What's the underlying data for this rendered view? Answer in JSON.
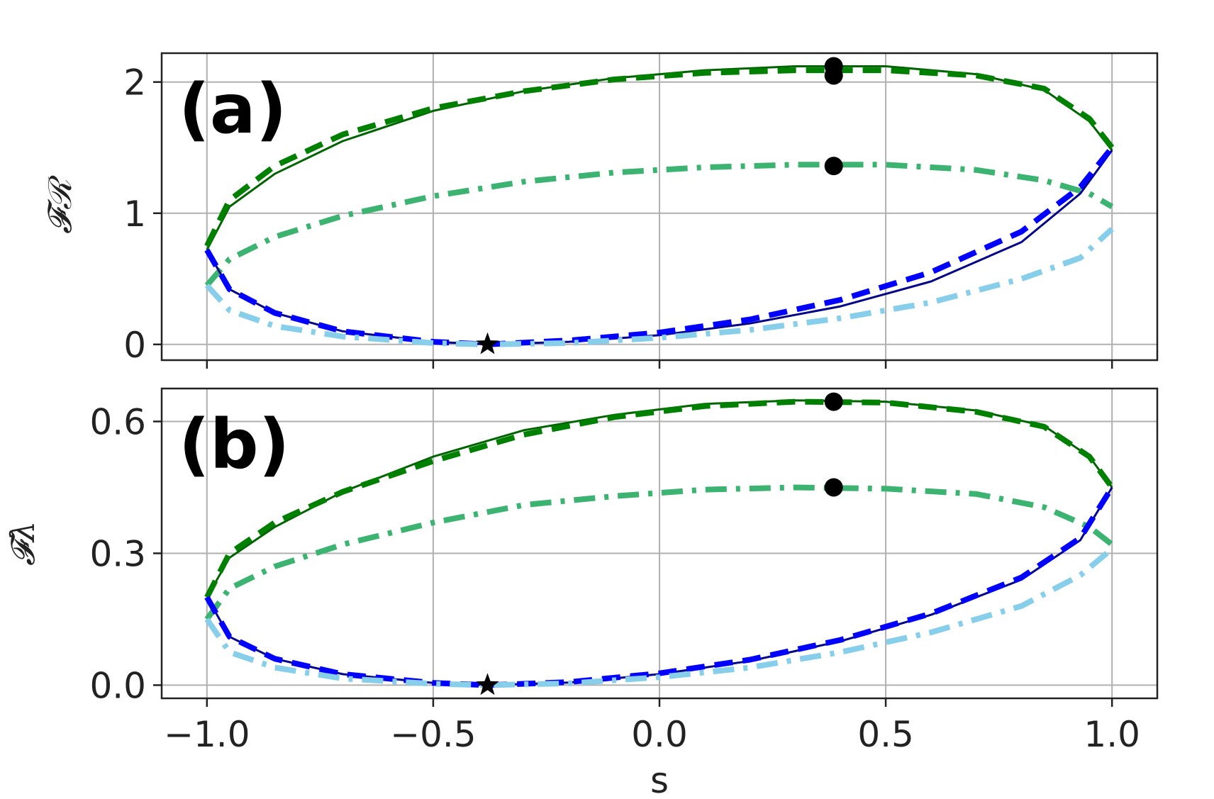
{
  "chart_data": [
    {
      "type": "line",
      "panel_label": "(a)",
      "ylabel": "𝓕ℛ",
      "xlabel": "",
      "xlim": [
        -1.1,
        1.1
      ],
      "ylim": [
        -0.12,
        2.22
      ],
      "xticks": [
        -1.0,
        -0.5,
        0.0,
        0.5,
        1.0
      ],
      "yticks": [
        0,
        1,
        2
      ],
      "ytick_labels": [
        "0",
        "1",
        "2"
      ],
      "xtick_labels": [
        "",
        "",
        "",
        "",
        ""
      ],
      "grid": true,
      "series": [
        {
          "color": "#006400",
          "style": "solid-thin",
          "points": [
            [
              -1.0,
              0.72
            ],
            [
              -0.95,
              1.05
            ],
            [
              -0.85,
              1.3
            ],
            [
              -0.7,
              1.55
            ],
            [
              -0.5,
              1.78
            ],
            [
              -0.3,
              1.93
            ],
            [
              -0.1,
              2.03
            ],
            [
              0.1,
              2.09
            ],
            [
              0.3,
              2.12
            ],
            [
              0.5,
              2.12
            ],
            [
              0.7,
              2.06
            ],
            [
              0.85,
              1.94
            ],
            [
              0.95,
              1.7
            ],
            [
              1.0,
              1.48
            ]
          ]
        },
        {
          "color": "#008000",
          "style": "dashed-thick",
          "points": [
            [
              -1.0,
              0.75
            ],
            [
              -0.95,
              1.1
            ],
            [
              -0.85,
              1.36
            ],
            [
              -0.7,
              1.6
            ],
            [
              -0.5,
              1.8
            ],
            [
              -0.3,
              1.93
            ],
            [
              -0.1,
              2.02
            ],
            [
              0.1,
              2.07
            ],
            [
              0.3,
              2.09
            ],
            [
              0.5,
              2.09
            ],
            [
              0.7,
              2.05
            ],
            [
              0.85,
              1.95
            ],
            [
              0.95,
              1.72
            ],
            [
              1.0,
              1.5
            ]
          ]
        },
        {
          "color": "#3cb371",
          "style": "dashdot",
          "points": [
            [
              -1.0,
              0.45
            ],
            [
              -0.95,
              0.65
            ],
            [
              -0.85,
              0.82
            ],
            [
              -0.7,
              0.98
            ],
            [
              -0.5,
              1.13
            ],
            [
              -0.3,
              1.24
            ],
            [
              -0.1,
              1.31
            ],
            [
              0.1,
              1.35
            ],
            [
              0.3,
              1.37
            ],
            [
              0.5,
              1.37
            ],
            [
              0.7,
              1.33
            ],
            [
              0.85,
              1.25
            ],
            [
              0.95,
              1.15
            ],
            [
              1.0,
              1.05
            ]
          ]
        },
        {
          "color": "#00008b",
          "style": "solid-thin",
          "points": [
            [
              -1.0,
              0.72
            ],
            [
              -0.95,
              0.42
            ],
            [
              -0.85,
              0.24
            ],
            [
              -0.7,
              0.1
            ],
            [
              -0.5,
              0.02
            ],
            [
              -0.38,
              0.0
            ],
            [
              -0.2,
              0.02
            ],
            [
              0.0,
              0.07
            ],
            [
              0.2,
              0.16
            ],
            [
              0.4,
              0.29
            ],
            [
              0.6,
              0.48
            ],
            [
              0.8,
              0.78
            ],
            [
              0.93,
              1.15
            ],
            [
              1.0,
              1.48
            ]
          ]
        },
        {
          "color": "#0000ff",
          "style": "dashed-thick",
          "points": [
            [
              -1.0,
              0.72
            ],
            [
              -0.95,
              0.42
            ],
            [
              -0.85,
              0.24
            ],
            [
              -0.7,
              0.1
            ],
            [
              -0.5,
              0.02
            ],
            [
              -0.38,
              0.0
            ],
            [
              -0.2,
              0.03
            ],
            [
              0.0,
              0.09
            ],
            [
              0.2,
              0.19
            ],
            [
              0.4,
              0.34
            ],
            [
              0.6,
              0.55
            ],
            [
              0.8,
              0.86
            ],
            [
              0.93,
              1.2
            ],
            [
              1.0,
              1.5
            ]
          ]
        },
        {
          "color": "#87ceeb",
          "style": "dashdot",
          "points": [
            [
              -1.0,
              0.45
            ],
            [
              -0.95,
              0.26
            ],
            [
              -0.85,
              0.14
            ],
            [
              -0.7,
              0.06
            ],
            [
              -0.5,
              0.01
            ],
            [
              -0.38,
              0.0
            ],
            [
              -0.2,
              0.01
            ],
            [
              0.0,
              0.05
            ],
            [
              0.2,
              0.11
            ],
            [
              0.4,
              0.2
            ],
            [
              0.6,
              0.32
            ],
            [
              0.8,
              0.5
            ],
            [
              0.93,
              0.66
            ],
            [
              1.0,
              0.88
            ]
          ]
        }
      ],
      "markers": [
        {
          "kind": "circle",
          "x": 0.385,
          "y": 2.12
        },
        {
          "kind": "circle",
          "x": 0.385,
          "y": 2.05
        },
        {
          "kind": "circle",
          "x": 0.385,
          "y": 1.36
        },
        {
          "kind": "star",
          "x": -0.38,
          "y": 0.0
        }
      ]
    },
    {
      "type": "line",
      "panel_label": "(b)",
      "ylabel": "𝓕λ",
      "xlabel": "s",
      "xlim": [
        -1.1,
        1.1
      ],
      "ylim": [
        -0.03,
        0.675
      ],
      "xticks": [
        -1.0,
        -0.5,
        0.0,
        0.5,
        1.0
      ],
      "xtick_labels": [
        "−1.0",
        "−0.5",
        "0.0",
        "0.5",
        "1.0"
      ],
      "yticks": [
        0.0,
        0.3,
        0.6
      ],
      "ytick_labels": [
        "0.0",
        "0.3",
        "0.6"
      ],
      "grid": true,
      "series": [
        {
          "color": "#006400",
          "style": "solid-thin",
          "points": [
            [
              -1.0,
              0.2
            ],
            [
              -0.95,
              0.29
            ],
            [
              -0.85,
              0.36
            ],
            [
              -0.7,
              0.44
            ],
            [
              -0.5,
              0.52
            ],
            [
              -0.3,
              0.58
            ],
            [
              -0.1,
              0.615
            ],
            [
              0.1,
              0.64
            ],
            [
              0.3,
              0.648
            ],
            [
              0.5,
              0.645
            ],
            [
              0.7,
              0.625
            ],
            [
              0.85,
              0.59
            ],
            [
              0.95,
              0.52
            ],
            [
              1.0,
              0.45
            ]
          ]
        },
        {
          "color": "#008000",
          "style": "dashed-thick",
          "points": [
            [
              -1.0,
              0.2
            ],
            [
              -0.95,
              0.3
            ],
            [
              -0.85,
              0.37
            ],
            [
              -0.7,
              0.44
            ],
            [
              -0.5,
              0.51
            ],
            [
              -0.3,
              0.57
            ],
            [
              -0.1,
              0.61
            ],
            [
              0.1,
              0.635
            ],
            [
              0.3,
              0.645
            ],
            [
              0.5,
              0.643
            ],
            [
              0.7,
              0.622
            ],
            [
              0.85,
              0.588
            ],
            [
              0.95,
              0.52
            ],
            [
              1.0,
              0.45
            ]
          ]
        },
        {
          "color": "#3cb371",
          "style": "dashdot",
          "points": [
            [
              -1.0,
              0.15
            ],
            [
              -0.95,
              0.22
            ],
            [
              -0.85,
              0.27
            ],
            [
              -0.7,
              0.32
            ],
            [
              -0.5,
              0.37
            ],
            [
              -0.3,
              0.41
            ],
            [
              -0.1,
              0.43
            ],
            [
              0.1,
              0.445
            ],
            [
              0.3,
              0.45
            ],
            [
              0.5,
              0.447
            ],
            [
              0.7,
              0.435
            ],
            [
              0.85,
              0.405
            ],
            [
              0.95,
              0.36
            ],
            [
              1.0,
              0.32
            ]
          ]
        },
        {
          "color": "#00008b",
          "style": "solid-thin",
          "points": [
            [
              -1.0,
              0.2
            ],
            [
              -0.95,
              0.11
            ],
            [
              -0.85,
              0.06
            ],
            [
              -0.7,
              0.025
            ],
            [
              -0.5,
              0.005
            ],
            [
              -0.38,
              0.0
            ],
            [
              -0.2,
              0.006
            ],
            [
              0.0,
              0.025
            ],
            [
              0.2,
              0.055
            ],
            [
              0.4,
              0.1
            ],
            [
              0.6,
              0.16
            ],
            [
              0.8,
              0.24
            ],
            [
              0.93,
              0.33
            ],
            [
              1.0,
              0.45
            ]
          ]
        },
        {
          "color": "#0000ff",
          "style": "dashed-thick",
          "points": [
            [
              -1.0,
              0.2
            ],
            [
              -0.95,
              0.11
            ],
            [
              -0.85,
              0.06
            ],
            [
              -0.7,
              0.025
            ],
            [
              -0.5,
              0.005
            ],
            [
              -0.38,
              0.0
            ],
            [
              -0.2,
              0.007
            ],
            [
              0.0,
              0.027
            ],
            [
              0.2,
              0.058
            ],
            [
              0.4,
              0.103
            ],
            [
              0.6,
              0.163
            ],
            [
              0.8,
              0.245
            ],
            [
              0.93,
              0.335
            ],
            [
              1.0,
              0.45
            ]
          ]
        },
        {
          "color": "#87ceeb",
          "style": "dashdot",
          "points": [
            [
              -1.0,
              0.15
            ],
            [
              -0.95,
              0.075
            ],
            [
              -0.85,
              0.04
            ],
            [
              -0.7,
              0.015
            ],
            [
              -0.5,
              0.003
            ],
            [
              -0.38,
              0.0
            ],
            [
              -0.2,
              0.004
            ],
            [
              0.0,
              0.018
            ],
            [
              0.2,
              0.04
            ],
            [
              0.4,
              0.075
            ],
            [
              0.6,
              0.12
            ],
            [
              0.8,
              0.18
            ],
            [
              0.93,
              0.25
            ],
            [
              1.0,
              0.31
            ]
          ]
        }
      ],
      "markers": [
        {
          "kind": "circle",
          "x": 0.385,
          "y": 0.645
        },
        {
          "kind": "circle",
          "x": 0.385,
          "y": 0.45
        },
        {
          "kind": "star",
          "x": -0.38,
          "y": 0.0
        }
      ]
    }
  ]
}
